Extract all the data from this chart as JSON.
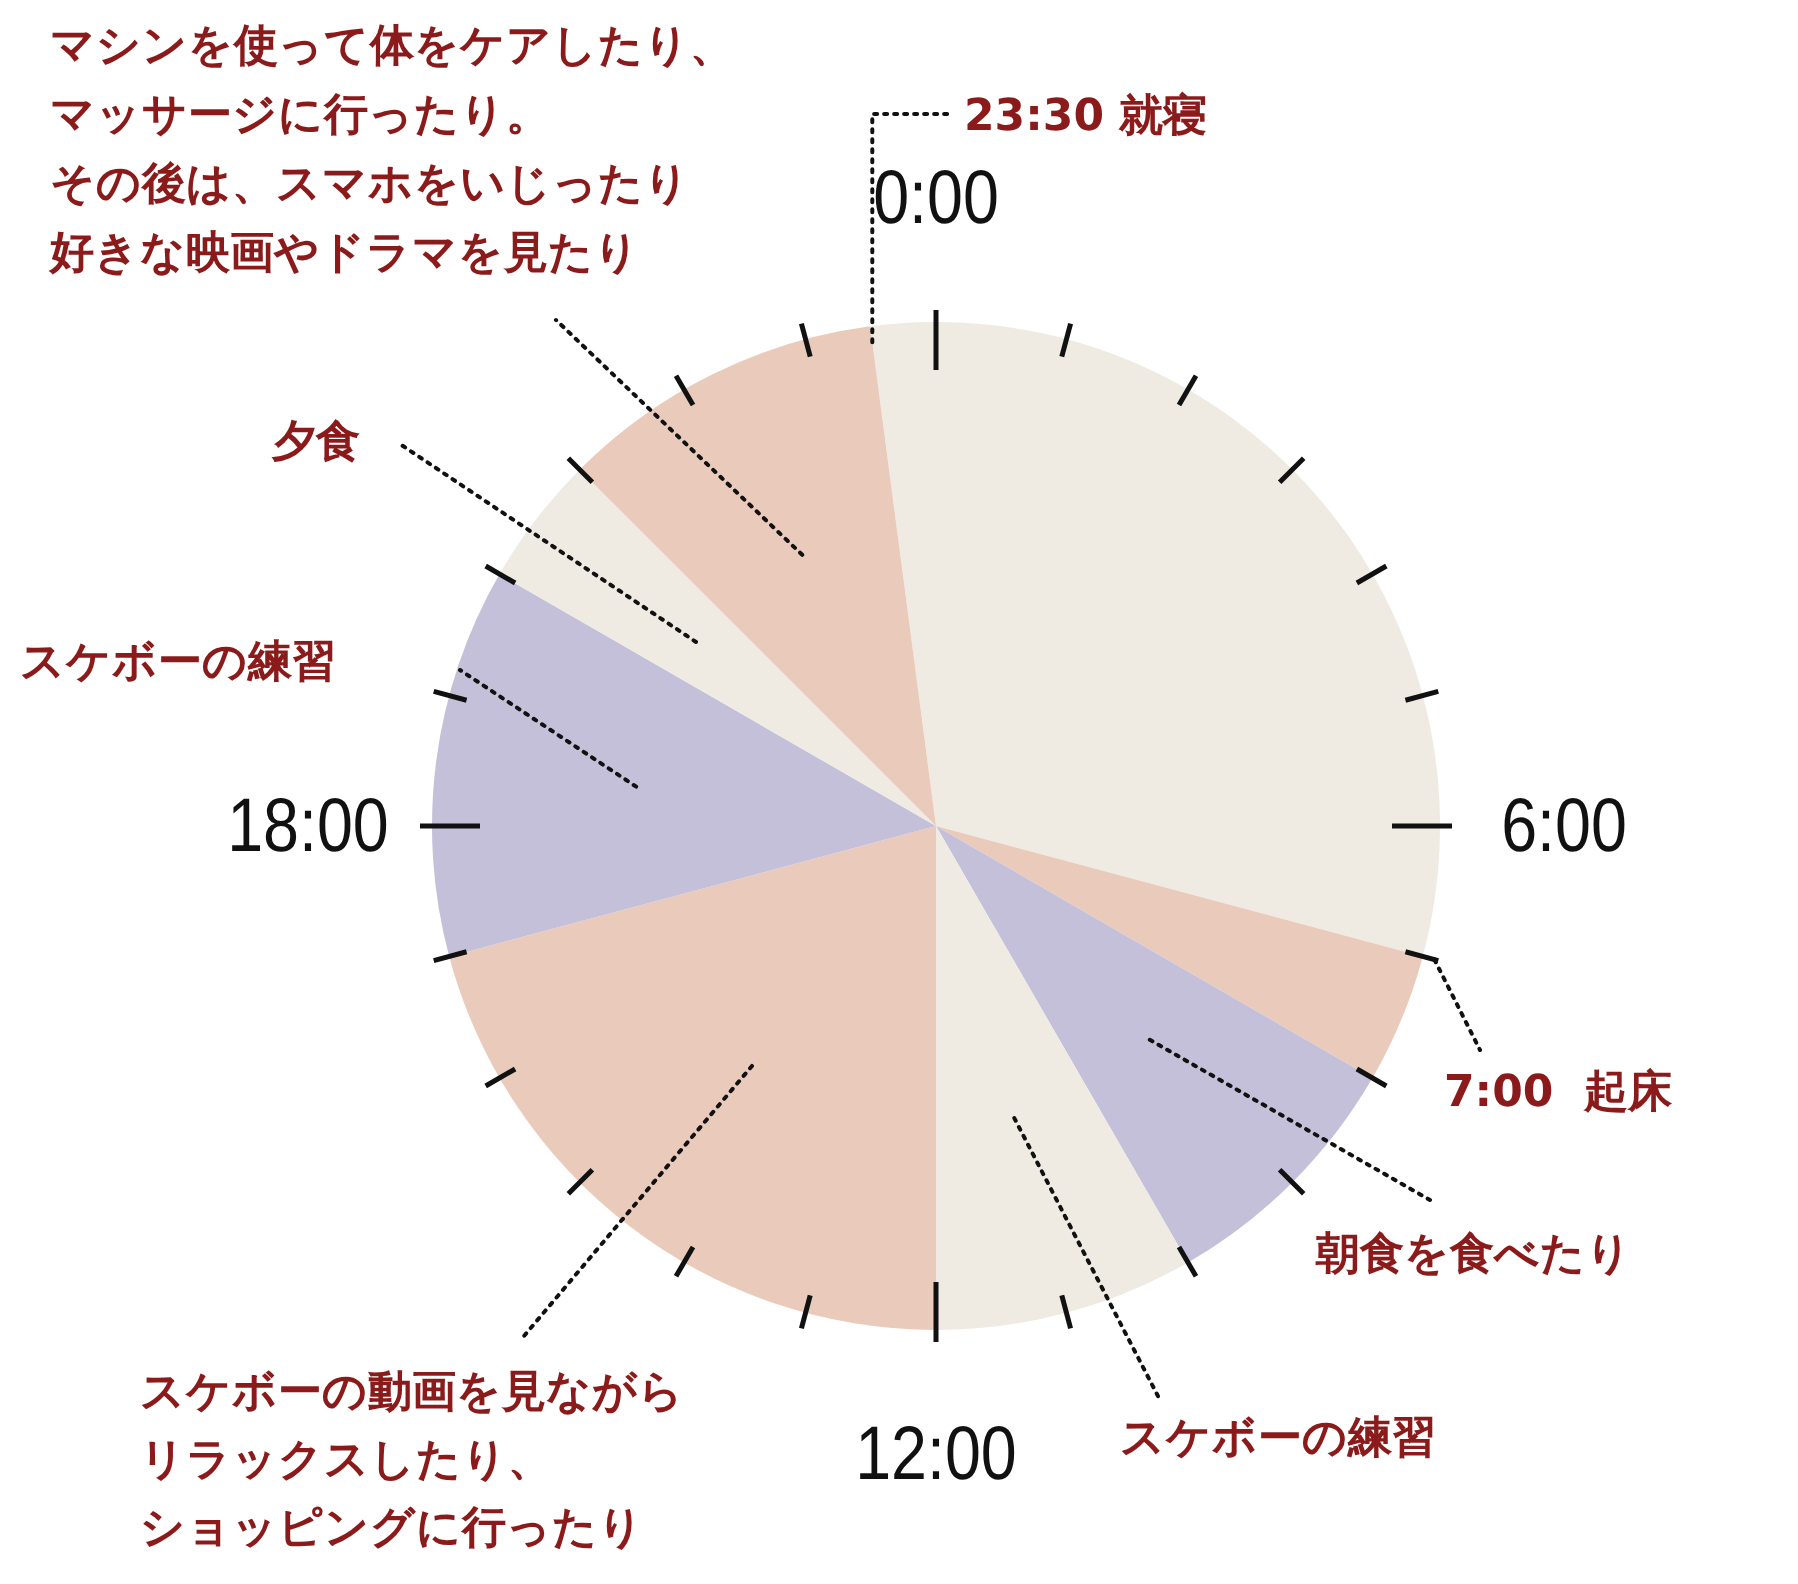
{
  "chart_data": {
    "type": "pie",
    "categories": [
      null,
      null,
      "朝食を食べたり",
      "スケボーの練習",
      "スケボーの動画を見ながらリラックスしたり、ショッピングに行ったり",
      "スケボーの練習",
      "夕食",
      "マシンを使って体をケアしたり、マッサージに行ったり。その後は、スマホをいじったり好きな映画やドラマを見たり"
    ],
    "values": [
      31.25,
      4.17,
      8.33,
      8.33,
      20.83,
      12.5,
      4.17,
      10.42
    ],
    "colors": [
      "#efebe3",
      "#eacbbb",
      "#c5c0d9",
      "#efebe3",
      "#eacbbb",
      "#c5c0d9",
      "#efebe3",
      "#eacbbb"
    ],
    "annotations": [
      "0:00",
      "6:00",
      "12:00",
      "18:00",
      "23:30 就寝",
      "7:00  起床"
    ]
  }
}
